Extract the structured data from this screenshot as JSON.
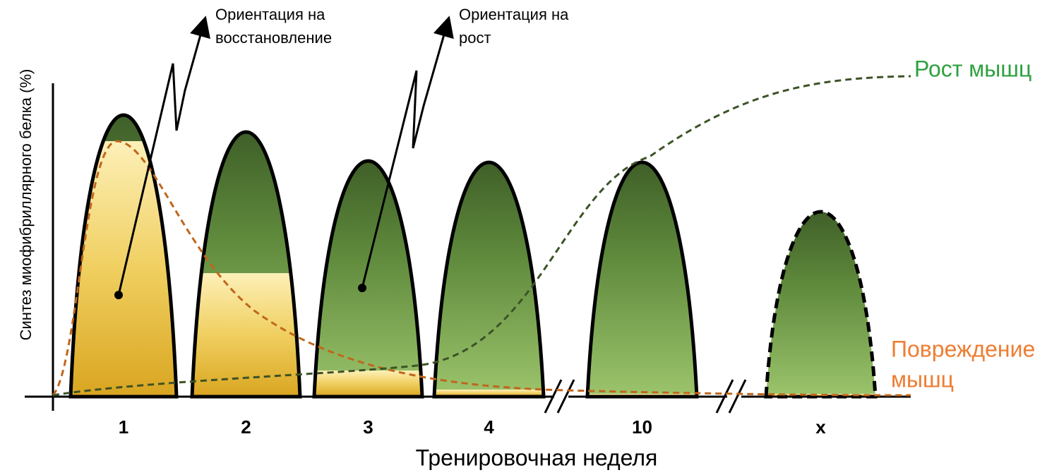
{
  "axes": {
    "y_label": "Синтез миофибриллярного белка (%)",
    "x_label": "Тренировочная неделя"
  },
  "weeks": [
    "1",
    "2",
    "3",
    "4",
    "10",
    "x"
  ],
  "annotations": [
    [
      "Ориентация на",
      "восстановление"
    ],
    [
      "Ориентация на",
      "рост"
    ]
  ],
  "curves": {
    "growth": "Рост мышц",
    "damage": [
      "Повреждение",
      "мышц"
    ]
  }
}
